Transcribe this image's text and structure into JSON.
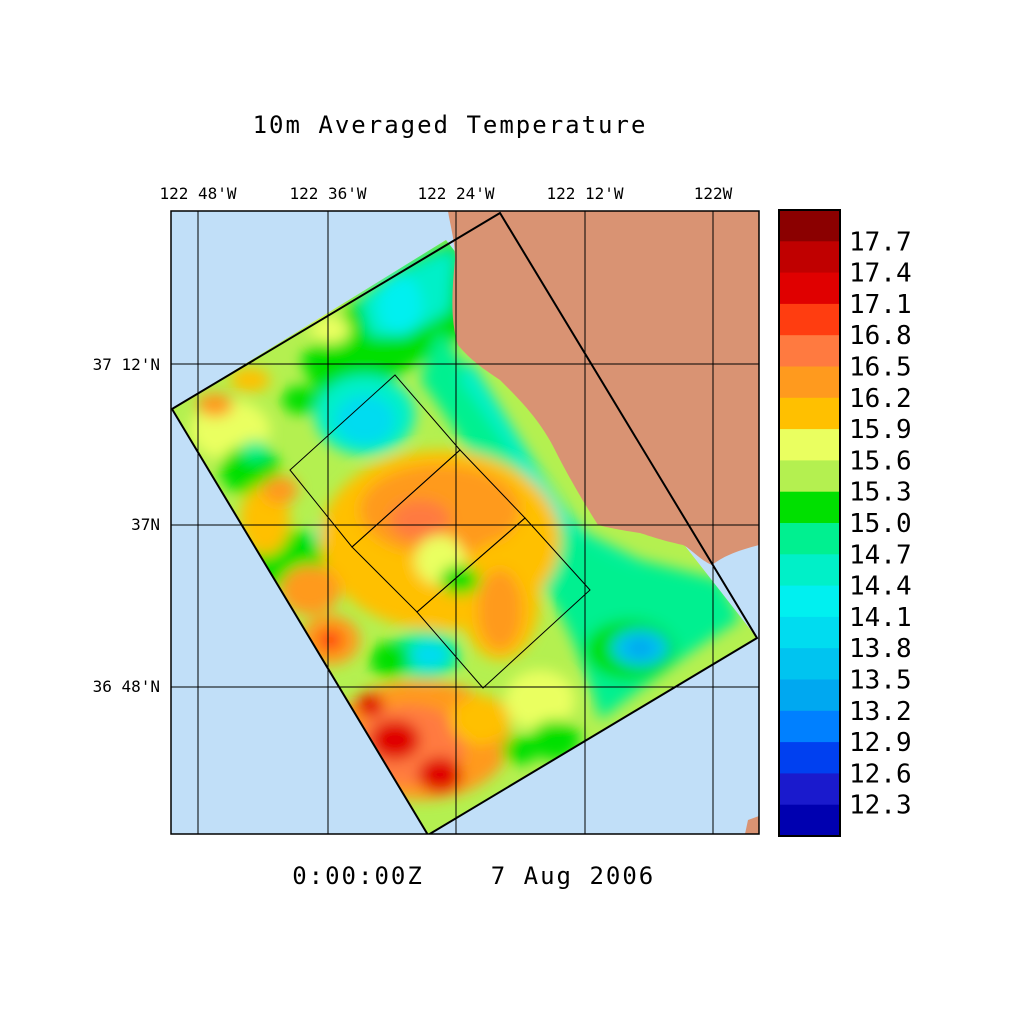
{
  "title": "10m Averaged Temperature",
  "timestamp": "0:00:00Z",
  "date": "7 Aug 2006",
  "lon_labels": [
    "122 48'W",
    "122 36'W",
    "122 24'W",
    "122 12'W",
    "122W"
  ],
  "lat_labels": [
    "37 12'N",
    "37N",
    "36 48'N"
  ],
  "colorbar": {
    "labels": [
      "17.7",
      "17.4",
      "17.1",
      "16.8",
      "16.5",
      "16.2",
      "15.9",
      "15.6",
      "15.3",
      "15.0",
      "14.7",
      "14.4",
      "14.1",
      "13.8",
      "13.5",
      "13.2",
      "12.9",
      "12.6",
      "12.3"
    ],
    "colors": [
      "#8b0000",
      "#c00000",
      "#e00000",
      "#ff3d10",
      "#ff7a40",
      "#ff9a1e",
      "#ffc000",
      "#eaff60",
      "#b4f050",
      "#00e000",
      "#00f090",
      "#00f0c8",
      "#00f0f0",
      "#00dcf0",
      "#00c4f0",
      "#00a8f0",
      "#0080ff",
      "#0040f0",
      "#1a1acd",
      "#0000b0"
    ]
  },
  "colors": {
    "ocean": "#c1dff8",
    "land": "#d99373"
  }
}
